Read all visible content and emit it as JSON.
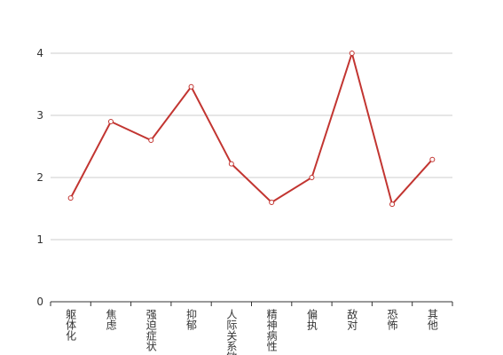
{
  "chart_data": {
    "type": "line",
    "categories": [
      "躯体化",
      "焦虑",
      "强迫症状",
      "抑郁",
      "人际关系敏感",
      "精神病性",
      "偏执",
      "敌对",
      "恐怖",
      "其他"
    ],
    "series": [
      {
        "color": "#c23531",
        "values": [
          1.67,
          2.9,
          2.6,
          3.46,
          2.22,
          1.6,
          2.0,
          4.0,
          1.57,
          2.29
        ]
      }
    ],
    "ylim": [
      0,
      4
    ],
    "yticks": [
      0,
      1,
      2,
      3,
      4
    ],
    "grid": true
  }
}
